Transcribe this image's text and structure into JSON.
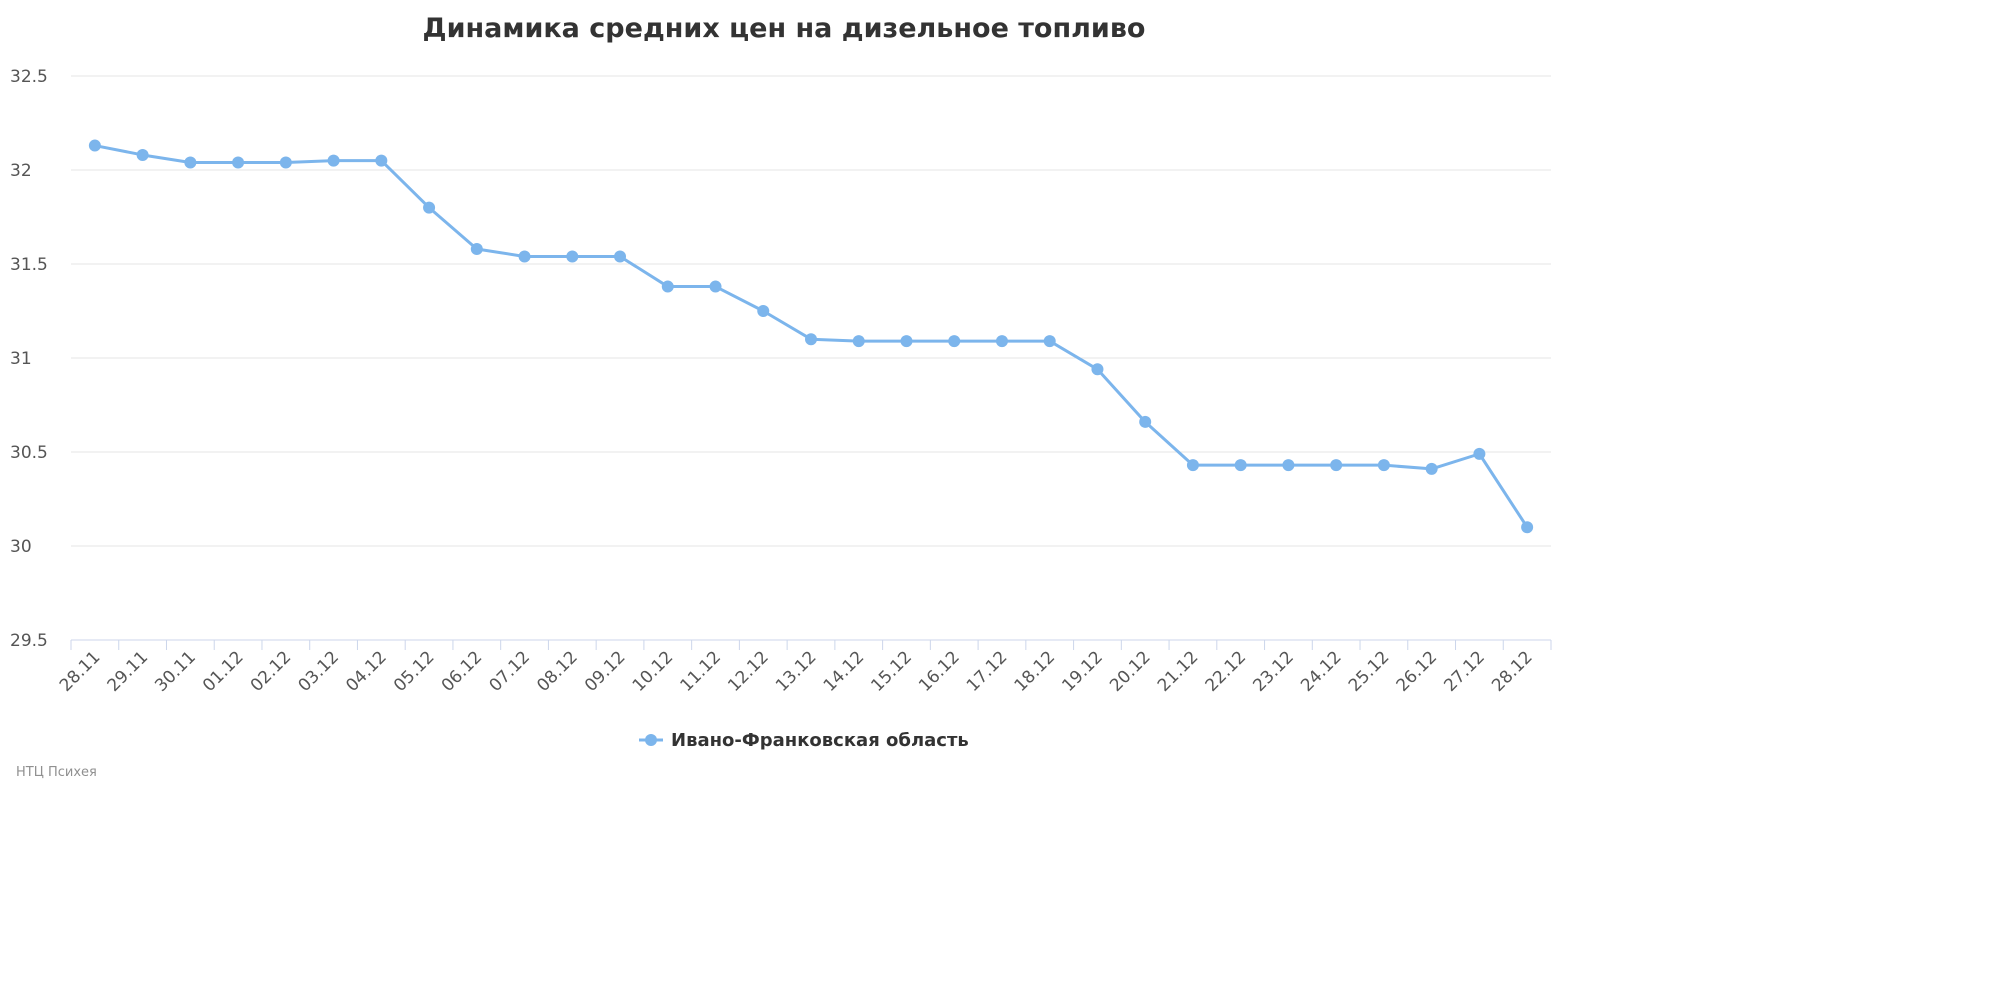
{
  "chart_data": {
    "type": "line",
    "title": "Динамика средних цен на дизельное топливо",
    "categories": [
      "28.11",
      "29.11",
      "30.11",
      "01.12",
      "02.12",
      "03.12",
      "04.12",
      "05.12",
      "06.12",
      "07.12",
      "08.12",
      "09.12",
      "10.12",
      "11.12",
      "12.12",
      "13.12",
      "14.12",
      "15.12",
      "16.12",
      "17.12",
      "18.12",
      "19.12",
      "20.12",
      "21.12",
      "22.12",
      "23.12",
      "24.12",
      "25.12",
      "26.12",
      "27.12",
      "28.12"
    ],
    "series": [
      {
        "name": "Ивано-Франковская область",
        "color": "#7cb5ec",
        "values": [
          32.13,
          32.08,
          32.04,
          32.04,
          32.04,
          32.05,
          32.05,
          31.8,
          31.58,
          31.54,
          31.54,
          31.54,
          31.38,
          31.38,
          31.25,
          31.1,
          31.09,
          31.09,
          31.09,
          31.09,
          31.09,
          30.94,
          30.66,
          30.43,
          30.43,
          30.43,
          30.43,
          30.43,
          30.41,
          30.49,
          30.1
        ]
      }
    ],
    "yticks": [
      "29.5",
      "30",
      "30.5",
      "31",
      "31.5",
      "32",
      "32.5"
    ],
    "ylim": [
      29.5,
      32.5
    ],
    "grid": true,
    "legend_position": "bottom-center"
  },
  "credit": "НТЦ Психея"
}
